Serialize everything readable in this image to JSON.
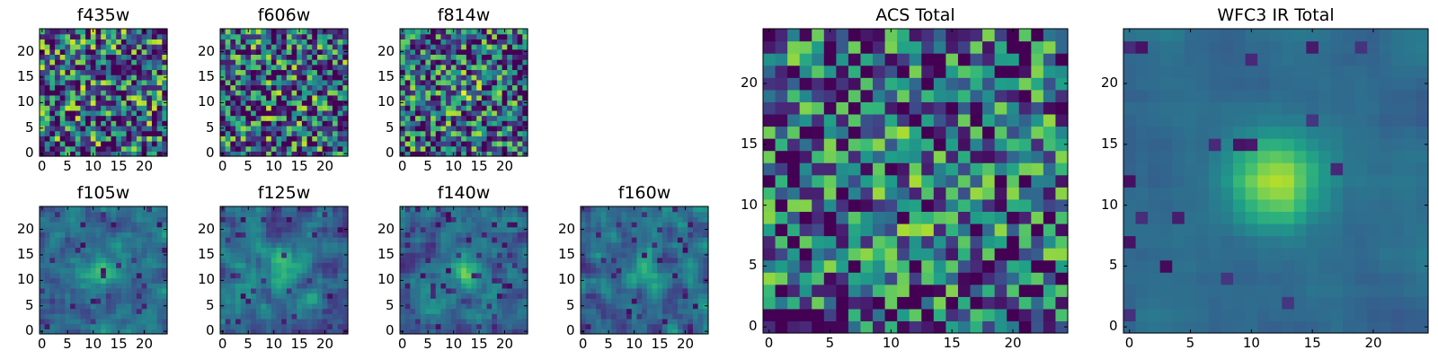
{
  "chart_data": [
    {
      "type": "heatmap",
      "title": "f435w",
      "xticks": [
        "0",
        "5",
        "10",
        "15",
        "20"
      ],
      "yticks": [
        "0",
        "5",
        "10",
        "15",
        "20"
      ],
      "grid_size": 25,
      "colormap": "viridis",
      "seed": 11,
      "blob": 0.05,
      "noise": 0.9,
      "dark_fraction": 0.12
    },
    {
      "type": "heatmap",
      "title": "f606w",
      "xticks": [
        "0",
        "5",
        "10",
        "15",
        "20"
      ],
      "yticks": [
        "0",
        "5",
        "10",
        "15",
        "20"
      ],
      "grid_size": 25,
      "colormap": "viridis",
      "seed": 23,
      "blob": 0.15,
      "noise": 0.85,
      "dark_fraction": 0.1
    },
    {
      "type": "heatmap",
      "title": "f814w",
      "xticks": [
        "0",
        "5",
        "10",
        "15",
        "20"
      ],
      "yticks": [
        "0",
        "5",
        "10",
        "15",
        "20"
      ],
      "grid_size": 25,
      "colormap": "viridis",
      "seed": 37,
      "blob": 0.3,
      "noise": 0.8,
      "dark_fraction": 0.08
    },
    {
      "type": "heatmap",
      "title": "f105w",
      "xticks": [
        "0",
        "5",
        "10",
        "15",
        "20"
      ],
      "yticks": [
        "0",
        "5",
        "10",
        "15",
        "20"
      ],
      "grid_size": 25,
      "colormap": "viridis",
      "seed": 41,
      "blob": 0.55,
      "noise": 0.6,
      "dark_fraction": 0.05
    },
    {
      "type": "heatmap",
      "title": "f125w",
      "xticks": [
        "0",
        "5",
        "10",
        "15",
        "20"
      ],
      "yticks": [
        "0",
        "5",
        "10",
        "15",
        "20"
      ],
      "grid_size": 25,
      "colormap": "viridis",
      "seed": 53,
      "blob": 0.5,
      "noise": 0.65,
      "dark_fraction": 0.06
    },
    {
      "type": "heatmap",
      "title": "f140w",
      "xticks": [
        "0",
        "5",
        "10",
        "15",
        "20"
      ],
      "yticks": [
        "0",
        "5",
        "10",
        "15",
        "20"
      ],
      "grid_size": 25,
      "colormap": "viridis",
      "seed": 67,
      "blob": 0.5,
      "noise": 0.65,
      "dark_fraction": 0.06
    },
    {
      "type": "heatmap",
      "title": "f160w",
      "xticks": [
        "0",
        "5",
        "10",
        "15",
        "20"
      ],
      "yticks": [
        "0",
        "5",
        "10",
        "15",
        "20"
      ],
      "grid_size": 25,
      "colormap": "viridis",
      "seed": 79,
      "blob": 0.45,
      "noise": 0.7,
      "dark_fraction": 0.06
    },
    {
      "type": "heatmap",
      "title": "ACS Total",
      "xticks": [
        "0",
        "5",
        "10",
        "15",
        "20"
      ],
      "yticks": [
        "0",
        "5",
        "10",
        "15",
        "20"
      ],
      "grid_size": 25,
      "colormap": "viridis",
      "seed": 97,
      "blob": 0.2,
      "noise": 0.75,
      "dark_fraction": 0.07
    },
    {
      "type": "heatmap",
      "title": "WFC3 IR Total",
      "xticks": [
        "0",
        "5",
        "10",
        "15",
        "20"
      ],
      "yticks": [
        "0",
        "5",
        "10",
        "15",
        "20"
      ],
      "grid_size": 25,
      "colormap": "viridis",
      "seed": 113,
      "blob": 0.85,
      "noise": 0.35,
      "dark_fraction": 0.04
    }
  ]
}
